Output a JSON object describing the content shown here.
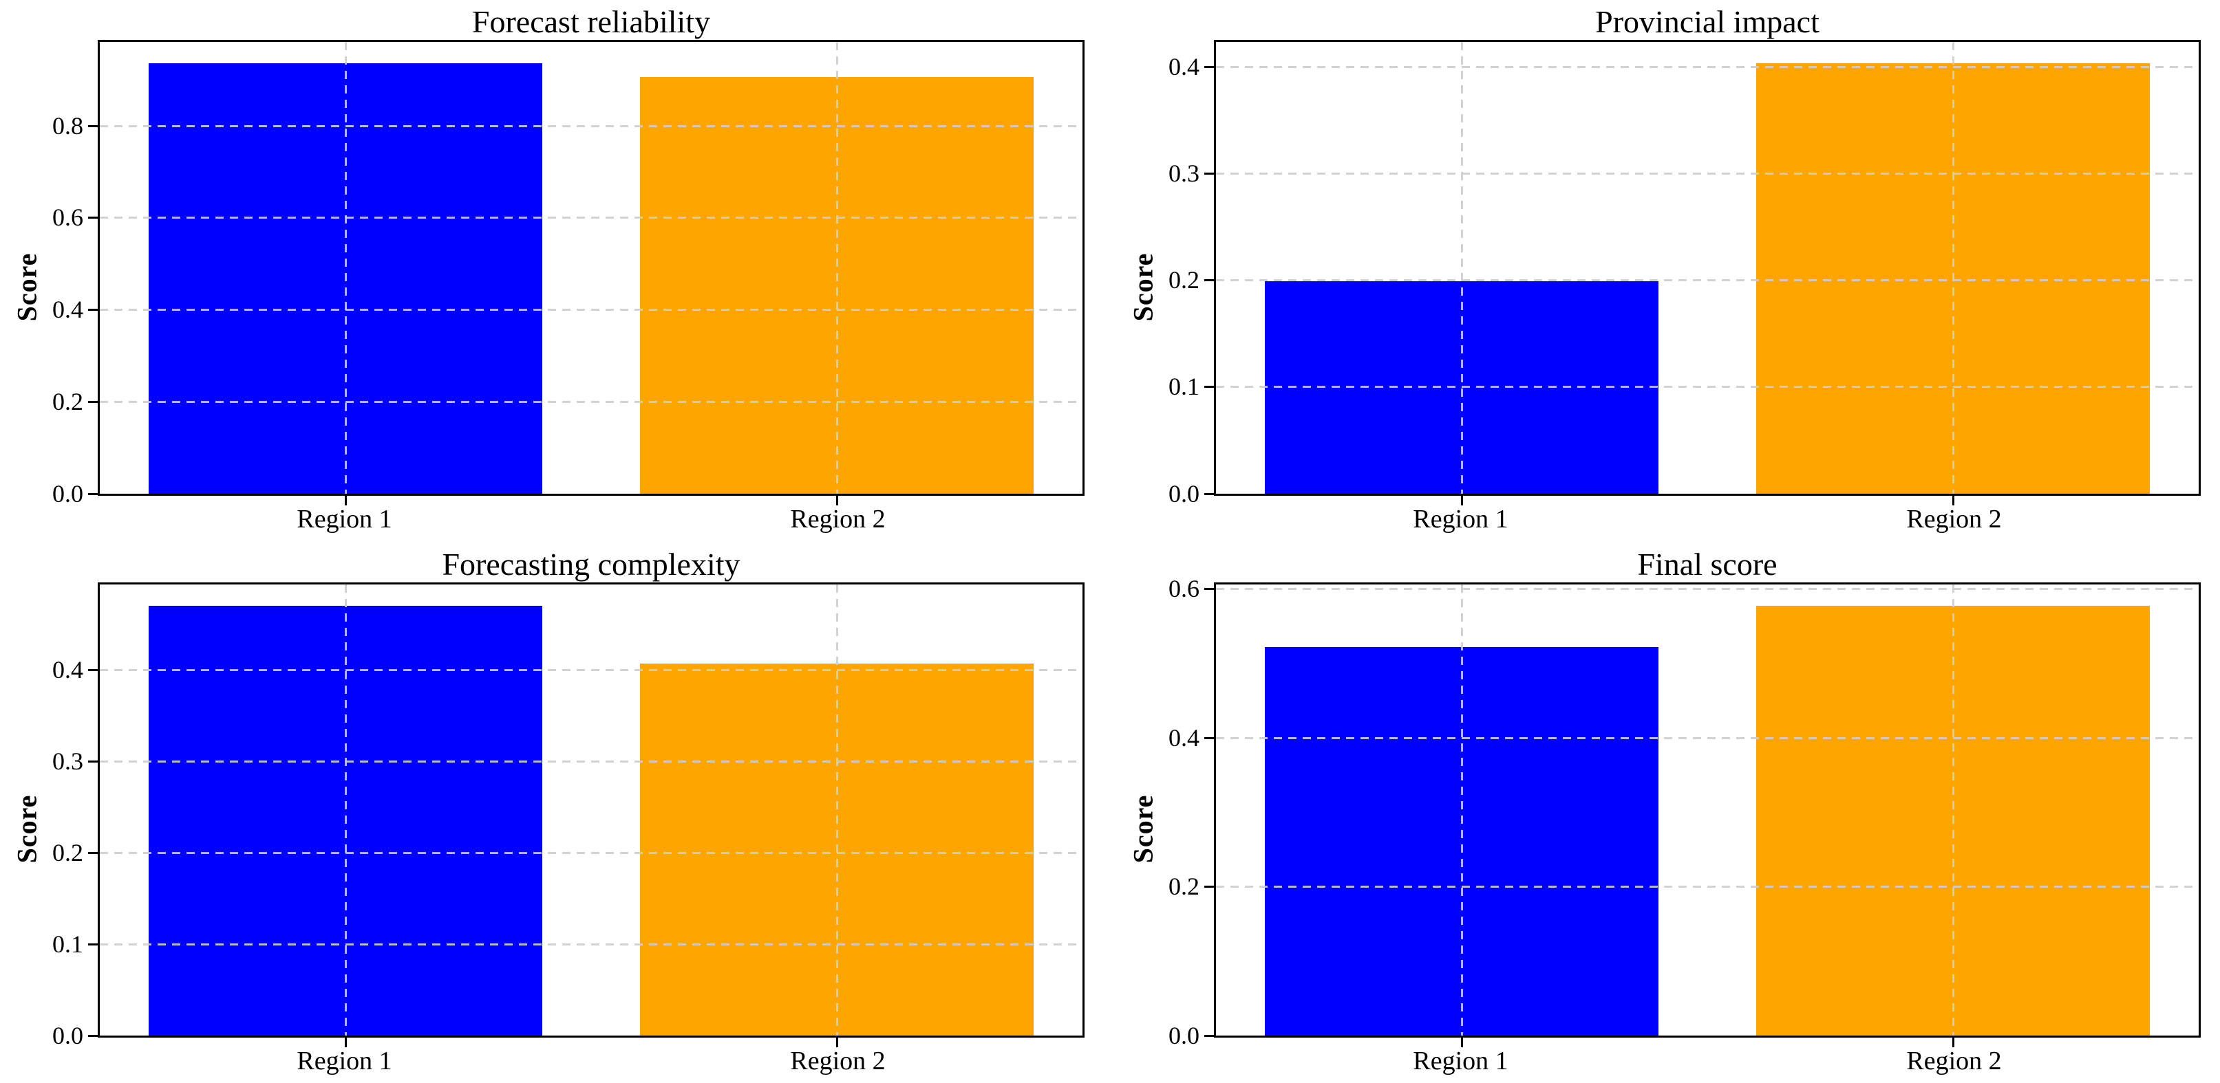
{
  "figure": {
    "background": "#ffffff",
    "text_color": "#000000",
    "grid_color": "#cdcdcd",
    "axis_color": "#000000"
  },
  "chart_data": [
    {
      "type": "bar",
      "title": "Forecast reliability",
      "ylabel": "Score",
      "xlabel": "",
      "categories": [
        "Region 1",
        "Region 2"
      ],
      "values": [
        0.935,
        0.905
      ],
      "bar_colors": [
        "#0000ff",
        "#ffa500"
      ],
      "yticks": [
        0.0,
        0.2,
        0.4,
        0.6,
        0.8
      ],
      "ylim": [
        0,
        0.982
      ],
      "grid": "on",
      "grid_style": "dashed",
      "legend": "none"
    },
    {
      "type": "bar",
      "title": "Provincial impact",
      "ylabel": "Score",
      "xlabel": "",
      "categories": [
        "Region 1",
        "Region 2"
      ],
      "values": [
        0.199,
        0.403
      ],
      "bar_colors": [
        "#0000ff",
        "#ffa500"
      ],
      "yticks": [
        0.0,
        0.1,
        0.2,
        0.3,
        0.4
      ],
      "ylim": [
        0,
        0.423
      ],
      "grid": "on",
      "grid_style": "dashed",
      "legend": "none"
    },
    {
      "type": "bar",
      "title": "Forecasting complexity",
      "ylabel": "Score",
      "xlabel": "",
      "categories": [
        "Region 1",
        "Region 2"
      ],
      "values": [
        0.47,
        0.407
      ],
      "bar_colors": [
        "#0000ff",
        "#ffa500"
      ],
      "yticks": [
        0.0,
        0.1,
        0.2,
        0.3,
        0.4
      ],
      "ylim": [
        0,
        0.494
      ],
      "grid": "on",
      "grid_style": "dashed",
      "legend": "none"
    },
    {
      "type": "bar",
      "title": "Final score",
      "ylabel": "Score",
      "xlabel": "",
      "categories": [
        "Region 1",
        "Region 2"
      ],
      "values": [
        0.522,
        0.577
      ],
      "bar_colors": [
        "#0000ff",
        "#ffa500"
      ],
      "yticks": [
        0.0,
        0.2,
        0.4,
        0.6
      ],
      "ylim": [
        0,
        0.606
      ],
      "grid": "on",
      "grid_style": "dashed",
      "legend": "none"
    }
  ]
}
